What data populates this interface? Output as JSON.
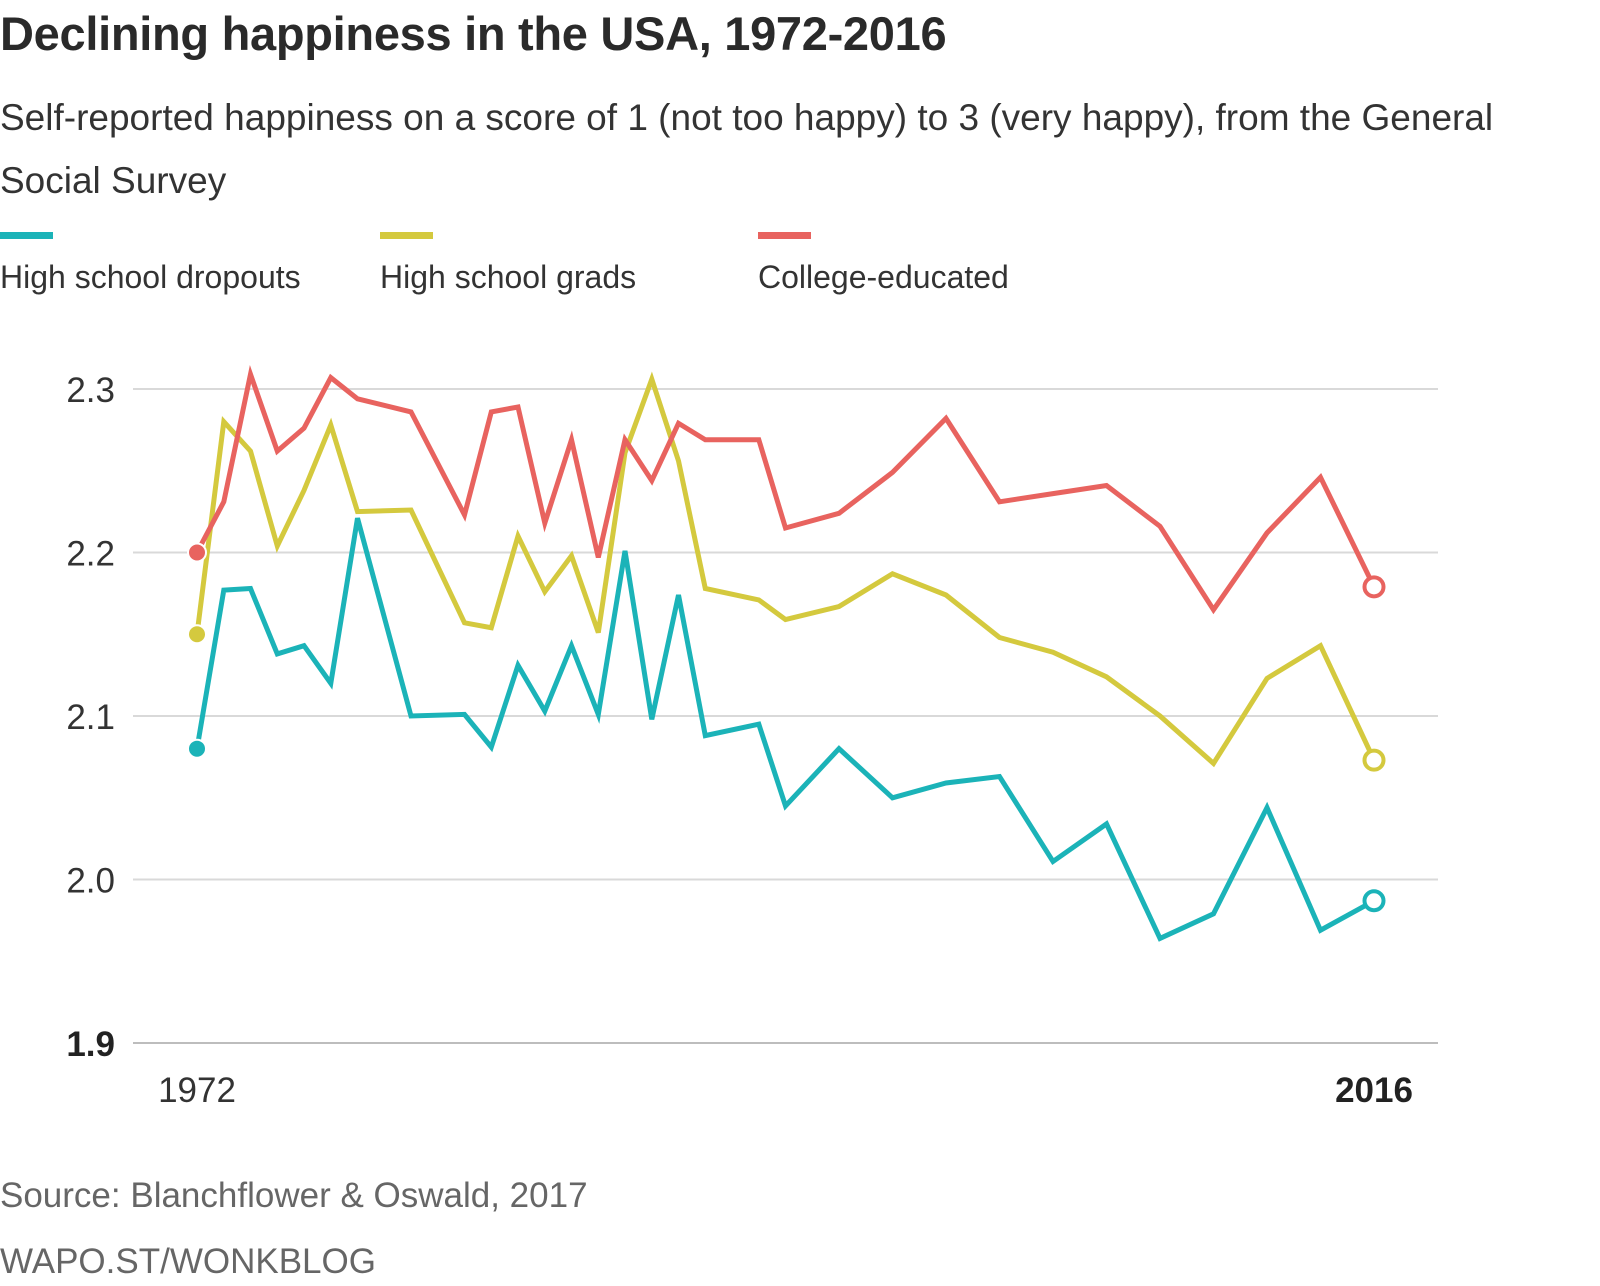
{
  "header": {
    "title": "Declining happiness in the USA, 1972-2016",
    "subtitle": "Self-reported happiness on a score of 1 (not too happy) to 3 (very happy), from the General Social Survey"
  },
  "legend": [
    {
      "label": "High school dropouts",
      "color": "#1bb3b8"
    },
    {
      "label": "High school grads",
      "color": "#d4c93e"
    },
    {
      "label": "College-educated",
      "color": "#e8635f"
    }
  ],
  "footer": {
    "source": "Source: Blanchflower & Oswald, 2017",
    "credit": "WAPO.ST/WONKBLOG"
  },
  "chart_data": {
    "type": "line",
    "title": "Declining happiness in the USA, 1972-2016",
    "xlabel": "",
    "ylabel": "",
    "ylim": [
      1.9,
      2.3
    ],
    "xlim": [
      1972,
      2016
    ],
    "y_ticks": [
      "2.3",
      "2.2",
      "2.1",
      "2.0",
      "1.9"
    ],
    "x_tick_labels": [
      "1972",
      "2016"
    ],
    "grid": true,
    "legend_position": "top-left",
    "x": [
      1972,
      1973,
      1974,
      1975,
      1976,
      1977,
      1978,
      1980,
      1982,
      1983,
      1984,
      1985,
      1986,
      1987,
      1988,
      1989,
      1990,
      1991,
      1993,
      1994,
      1996,
      1998,
      2000,
      2002,
      2004,
      2006,
      2008,
      2010,
      2012,
      2014,
      2016
    ],
    "series": [
      {
        "name": "High school dropouts",
        "color": "#1bb3b8",
        "values": [
          2.08,
          2.177,
          2.178,
          2.138,
          2.143,
          2.12,
          2.221,
          2.1,
          2.101,
          2.081,
          2.131,
          2.103,
          2.143,
          2.101,
          2.201,
          2.098,
          2.174,
          2.088,
          2.095,
          2.045,
          2.08,
          2.05,
          2.059,
          2.063,
          2.011,
          2.034,
          1.964,
          1.979,
          2.044,
          1.969,
          1.987
        ]
      },
      {
        "name": "High school grads",
        "color": "#d4c93e",
        "values": [
          2.15,
          2.28,
          2.262,
          2.204,
          2.238,
          2.278,
          2.225,
          2.226,
          2.157,
          2.154,
          2.21,
          2.176,
          2.198,
          2.151,
          2.261,
          2.306,
          2.256,
          2.178,
          2.171,
          2.159,
          2.167,
          2.187,
          2.174,
          2.148,
          2.139,
          2.124,
          2.1,
          2.071,
          2.123,
          2.143,
          2.073
        ]
      },
      {
        "name": "College-educated",
        "color": "#e8635f",
        "values": [
          2.2,
          2.231,
          2.309,
          2.262,
          2.276,
          2.307,
          2.294,
          2.286,
          2.223,
          2.286,
          2.289,
          2.218,
          2.269,
          2.197,
          2.269,
          2.244,
          2.279,
          2.269,
          2.269,
          2.215,
          2.224,
          2.249,
          2.282,
          2.231,
          2.236,
          2.241,
          2.216,
          2.165,
          2.212,
          2.246,
          2.179
        ]
      }
    ]
  }
}
